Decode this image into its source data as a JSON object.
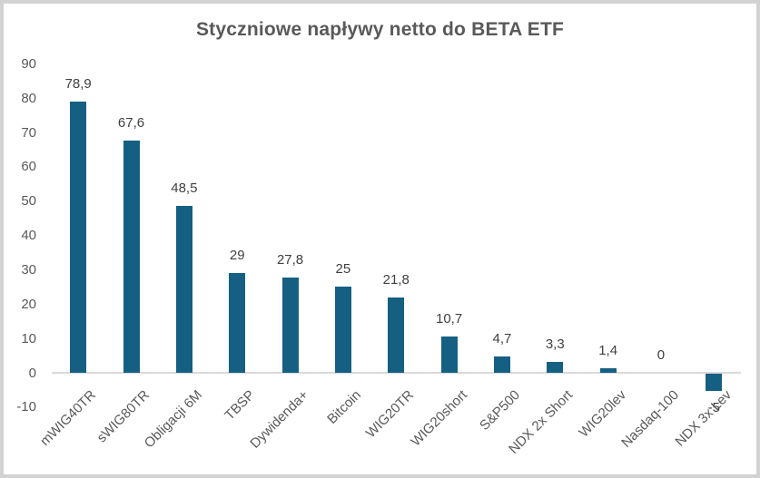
{
  "chart_data": {
    "type": "bar",
    "title": "Styczniowe napływy netto do BETA ETF",
    "categories": [
      "mWIG40TR",
      "sWIG80TR",
      "Obligacji 6M",
      "TBSP",
      "Dywidenda+",
      "Bitcoin",
      "WIG20TR",
      "WIG20short",
      "S&P500",
      "NDX 2x Short",
      "WIG20lev",
      "Nasdaq-100",
      "NDX 3x Lev"
    ],
    "values": [
      78.9,
      67.6,
      48.5,
      29,
      27.8,
      25,
      21.8,
      10.7,
      4.7,
      3.3,
      1.4,
      0,
      -5
    ],
    "data_labels": [
      "78,9",
      "67,6",
      "48,5",
      "29",
      "27,8",
      "25",
      "21,8",
      "10,7",
      "4,7",
      "3,3",
      "1,4",
      "0",
      "-5"
    ],
    "y_ticks": [
      90,
      80,
      70,
      60,
      50,
      40,
      30,
      20,
      10,
      0,
      -10
    ],
    "ylim": [
      -10,
      90
    ],
    "xlabel": "",
    "ylabel": "",
    "grid": false,
    "legend": false,
    "colors": {
      "bar": "#156082",
      "title_text": "#595959",
      "axis_text": "#595959",
      "data_label_text": "#404040",
      "axis_line": "#d9d9d9",
      "frame_border": "#d2d2d2",
      "background": "#ffffff"
    }
  }
}
